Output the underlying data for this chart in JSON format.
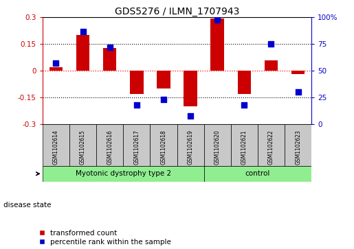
{
  "title": "GDS5276 / ILMN_1707943",
  "samples": [
    "GSM1102614",
    "GSM1102615",
    "GSM1102616",
    "GSM1102617",
    "GSM1102618",
    "GSM1102619",
    "GSM1102620",
    "GSM1102621",
    "GSM1102622",
    "GSM1102623"
  ],
  "red_bars": [
    0.02,
    0.2,
    0.13,
    -0.13,
    -0.1,
    -0.2,
    0.295,
    -0.13,
    0.06,
    -0.02
  ],
  "blue_dots": [
    57,
    87,
    72,
    18,
    23,
    8,
    98,
    18,
    75,
    30
  ],
  "ylim_left": [
    -0.3,
    0.3
  ],
  "ylim_right": [
    0,
    100
  ],
  "yticks_left": [
    -0.3,
    -0.15,
    0.0,
    0.15,
    0.3
  ],
  "yticks_right": [
    0,
    25,
    50,
    75,
    100
  ],
  "ytick_labels_left": [
    "-0.3",
    "-0.15",
    "0",
    "0.15",
    "0.3"
  ],
  "ytick_labels_right": [
    "0",
    "25",
    "50",
    "75",
    "100%"
  ],
  "red_color": "#CC0000",
  "blue_color": "#0000CC",
  "bar_width": 0.5,
  "dot_size": 40,
  "legend_red_label": "transformed count",
  "legend_blue_label": "percentile rank within the sample",
  "disease_state_label": "disease state",
  "group1_label": "Myotonic dystrophy type 2",
  "group2_label": "control",
  "group1_count": 6,
  "group2_count": 4,
  "gray_color": "#C8C8C8",
  "green_color": "#90EE90"
}
